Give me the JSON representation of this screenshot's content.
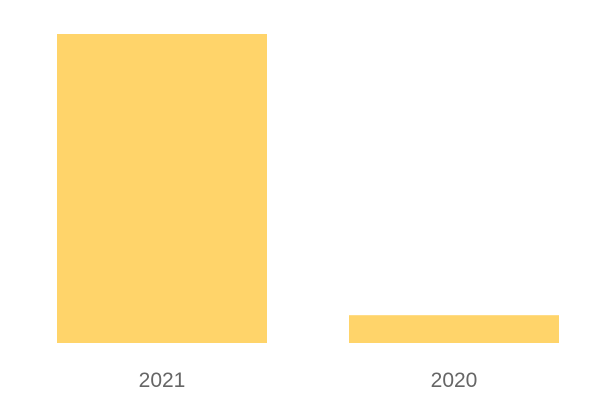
{
  "chart_data": {
    "type": "bar",
    "categories": [
      "2021",
      "2020"
    ],
    "values": [
      100,
      9
    ],
    "title": "",
    "xlabel": "",
    "ylabel": "",
    "ylim": [
      0,
      100
    ],
    "grid": false,
    "bar_color": "#FFD46A",
    "label_color": "#666666"
  }
}
